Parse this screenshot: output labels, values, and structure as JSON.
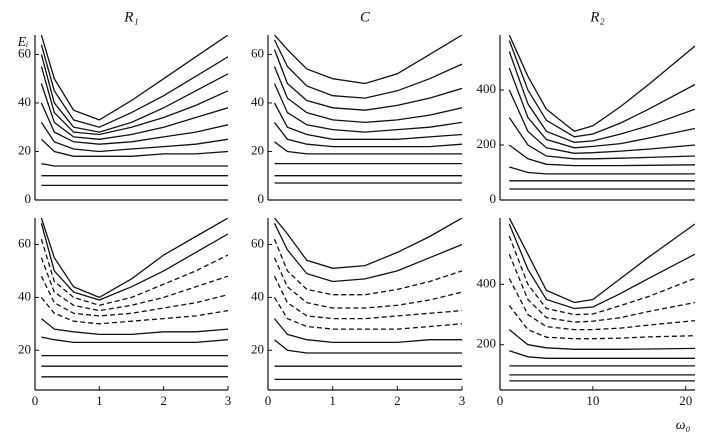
{
  "chart_data": [
    {
      "type": "line",
      "title": "R₁",
      "ylabel": "Eᵢ",
      "color": "#111",
      "x": [
        0.1,
        0.3,
        0.6,
        1,
        1.5,
        2,
        2.5,
        3
      ],
      "xlim": [
        0,
        3
      ],
      "ylim": [
        0,
        68
      ],
      "yticks": [
        0,
        20,
        40,
        60
      ],
      "series": [
        {
          "values": [
            68,
            50,
            37,
            33,
            41,
            50,
            59,
            68
          ]
        },
        {
          "values": [
            64,
            45,
            33,
            30,
            36,
            43,
            51,
            59
          ]
        },
        {
          "values": [
            60,
            40,
            30,
            28,
            32,
            38,
            45,
            52
          ]
        },
        {
          "values": [
            55,
            36,
            28,
            27,
            30,
            34,
            39,
            45
          ]
        },
        {
          "values": [
            48,
            32,
            26,
            25,
            27,
            30,
            34,
            38
          ]
        },
        {
          "values": [
            40,
            28,
            24,
            23,
            24,
            26,
            28,
            31
          ]
        },
        {
          "values": [
            32,
            24,
            21,
            20,
            21,
            22,
            23,
            25
          ]
        },
        {
          "values": [
            25,
            20,
            18,
            18,
            18,
            19,
            19,
            20
          ]
        },
        {
          "values": [
            15,
            14,
            14,
            14,
            14,
            14,
            14,
            14
          ]
        },
        {
          "values": [
            10,
            10,
            10,
            10,
            10,
            10,
            10,
            10
          ]
        },
        {
          "values": [
            6,
            6,
            6,
            6,
            6,
            6,
            6,
            6
          ]
        }
      ]
    },
    {
      "type": "line",
      "title": "C",
      "color": "#111",
      "x": [
        0.1,
        0.3,
        0.6,
        1,
        1.5,
        2,
        2.5,
        3
      ],
      "xlim": [
        0,
        3
      ],
      "ylim": [
        0,
        68
      ],
      "yticks": [
        0,
        20,
        40,
        60
      ],
      "series": [
        {
          "values": [
            68,
            62,
            54,
            50,
            48,
            52,
            60,
            68
          ]
        },
        {
          "values": [
            66,
            55,
            47,
            43,
            42,
            45,
            50,
            56
          ]
        },
        {
          "values": [
            62,
            48,
            41,
            38,
            37,
            39,
            42,
            46
          ]
        },
        {
          "values": [
            55,
            42,
            36,
            33,
            32,
            33,
            35,
            38
          ]
        },
        {
          "values": [
            48,
            36,
            31,
            29,
            28,
            29,
            30,
            32
          ]
        },
        {
          "values": [
            40,
            30,
            27,
            25,
            25,
            25,
            26,
            27
          ]
        },
        {
          "values": [
            32,
            25,
            23,
            22,
            22,
            22,
            22,
            23
          ]
        },
        {
          "values": [
            24,
            20,
            19,
            19,
            19,
            19,
            19,
            19
          ]
        },
        {
          "values": [
            15,
            15,
            15,
            15,
            15,
            15,
            15,
            15
          ]
        },
        {
          "values": [
            10,
            10,
            10,
            10,
            10,
            10,
            10,
            10
          ]
        },
        {
          "values": [
            7,
            7,
            7,
            7,
            7,
            7,
            7,
            7
          ]
        }
      ]
    },
    {
      "type": "line",
      "title": "R₂",
      "color": "#111",
      "x": [
        1,
        3,
        5,
        8,
        10,
        13,
        16,
        21
      ],
      "xlim": [
        0,
        21
      ],
      "ylim": [
        0,
        600
      ],
      "yticks": [
        0,
        200,
        400
      ],
      "series": [
        {
          "values": [
            600,
            450,
            330,
            250,
            270,
            340,
            420,
            560
          ]
        },
        {
          "values": [
            580,
            400,
            290,
            230,
            240,
            280,
            330,
            420
          ]
        },
        {
          "values": [
            540,
            350,
            250,
            210,
            215,
            240,
            270,
            330
          ]
        },
        {
          "values": [
            480,
            300,
            220,
            190,
            195,
            205,
            225,
            260
          ]
        },
        {
          "values": [
            400,
            250,
            190,
            170,
            172,
            178,
            185,
            200
          ]
        },
        {
          "values": [
            300,
            200,
            160,
            150,
            150,
            152,
            155,
            160
          ]
        },
        {
          "values": [
            200,
            150,
            130,
            125,
            125,
            125,
            126,
            128
          ]
        },
        {
          "values": [
            120,
            100,
            95,
            95,
            95,
            95,
            95,
            95
          ]
        },
        {
          "values": [
            70,
            70,
            70,
            70,
            70,
            70,
            70,
            70
          ]
        },
        {
          "values": [
            40,
            40,
            40,
            40,
            40,
            40,
            40,
            40
          ]
        }
      ]
    },
    {
      "type": "line",
      "color": "#111",
      "x": [
        0.1,
        0.3,
        0.6,
        1,
        1.5,
        2,
        2.5,
        3
      ],
      "xlim": [
        0,
        3
      ],
      "xticks": [
        0,
        1,
        2,
        3
      ],
      "ylim": [
        5,
        70
      ],
      "yticks": [
        20,
        40,
        60
      ],
      "series": [
        {
          "values": [
            70,
            55,
            44,
            40,
            47,
            56,
            63,
            70
          ]
        },
        {
          "values": [
            68,
            50,
            42,
            39,
            44,
            50,
            57,
            64
          ]
        },
        {
          "values": [
            62,
            46,
            40,
            37,
            40,
            45,
            50,
            56
          ],
          "style": "dashed"
        },
        {
          "values": [
            55,
            42,
            37,
            35,
            37,
            40,
            44,
            48
          ],
          "style": "dashed"
        },
        {
          "values": [
            48,
            38,
            34,
            33,
            34,
            36,
            38,
            41
          ],
          "style": "dashed"
        },
        {
          "values": [
            40,
            34,
            31,
            30,
            31,
            32,
            33,
            35
          ],
          "style": "dashed"
        },
        {
          "values": [
            32,
            28,
            27,
            26,
            26,
            27,
            27,
            28
          ]
        },
        {
          "values": [
            25,
            24,
            23,
            23,
            23,
            23,
            23,
            24
          ]
        },
        {
          "values": [
            18,
            18,
            18,
            18,
            18,
            18,
            18,
            18
          ]
        },
        {
          "values": [
            14,
            14,
            14,
            14,
            14,
            14,
            14,
            14
          ]
        },
        {
          "values": [
            10,
            10,
            10,
            10,
            10,
            10,
            10,
            10
          ]
        }
      ]
    },
    {
      "type": "line",
      "color": "#111",
      "x": [
        0.1,
        0.3,
        0.6,
        1,
        1.5,
        2,
        2.5,
        3
      ],
      "xlim": [
        0,
        3
      ],
      "xticks": [
        0,
        1,
        2,
        3
      ],
      "ylim": [
        5,
        70
      ],
      "yticks": [
        20,
        40,
        60
      ],
      "series": [
        {
          "values": [
            70,
            64,
            54,
            51,
            52,
            57,
            63,
            70
          ]
        },
        {
          "values": [
            68,
            58,
            49,
            46,
            47,
            50,
            55,
            60
          ]
        },
        {
          "values": [
            62,
            50,
            43,
            41,
            41,
            43,
            46,
            50
          ],
          "style": "dashed"
        },
        {
          "values": [
            55,
            44,
            38,
            36,
            36,
            37,
            39,
            42
          ],
          "style": "dashed"
        },
        {
          "values": [
            48,
            38,
            33,
            32,
            32,
            33,
            34,
            35
          ],
          "style": "dashed"
        },
        {
          "values": [
            40,
            32,
            29,
            28,
            28,
            28,
            29,
            30
          ],
          "style": "dashed"
        },
        {
          "values": [
            32,
            26,
            24,
            23,
            23,
            23,
            24,
            24
          ]
        },
        {
          "values": [
            24,
            20,
            19,
            19,
            19,
            19,
            19,
            19
          ]
        },
        {
          "values": [
            14,
            14,
            14,
            14,
            14,
            14,
            14,
            14
          ]
        },
        {
          "values": [
            9,
            9,
            9,
            9,
            9,
            9,
            9,
            9
          ]
        }
      ]
    },
    {
      "type": "line",
      "xlabel": "ω₀",
      "color": "#111",
      "x": [
        1,
        3,
        5,
        8,
        10,
        13,
        16,
        21
      ],
      "xlim": [
        0,
        21
      ],
      "xticks": [
        0,
        10,
        20
      ],
      "ylim": [
        50,
        620
      ],
      "yticks": [
        200,
        400
      ],
      "series": [
        {
          "values": [
            620,
            500,
            380,
            340,
            350,
            420,
            490,
            600
          ]
        },
        {
          "values": [
            600,
            450,
            350,
            320,
            325,
            370,
            420,
            500
          ]
        },
        {
          "values": [
            560,
            400,
            320,
            300,
            302,
            330,
            360,
            420
          ],
          "style": "dashed"
        },
        {
          "values": [
            500,
            350,
            290,
            275,
            278,
            290,
            310,
            340
          ],
          "style": "dashed"
        },
        {
          "values": [
            420,
            300,
            260,
            250,
            250,
            255,
            265,
            280
          ],
          "style": "dashed"
        },
        {
          "values": [
            330,
            250,
            225,
            220,
            220,
            222,
            226,
            230
          ],
          "style": "dashed"
        },
        {
          "values": [
            250,
            200,
            190,
            185,
            185,
            185,
            186,
            188
          ]
        },
        {
          "values": [
            180,
            160,
            155,
            155,
            155,
            155,
            155,
            155
          ]
        },
        {
          "values": [
            130,
            130,
            130,
            130,
            130,
            130,
            130,
            130
          ]
        },
        {
          "values": [
            100,
            100,
            100,
            100,
            100,
            100,
            100,
            100
          ]
        },
        {
          "values": [
            80,
            80,
            80,
            80,
            80,
            80,
            80,
            80
          ]
        }
      ]
    }
  ]
}
